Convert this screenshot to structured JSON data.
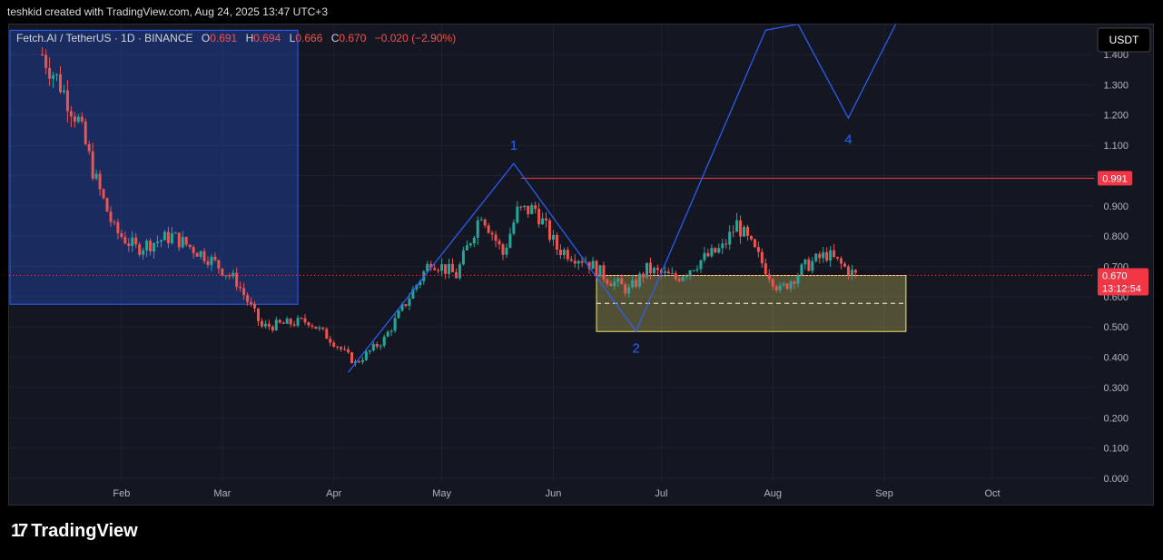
{
  "header": {
    "text": "teshkid created with TradingView.com, Aug 24, 2025 13:47 UTC+3"
  },
  "legend": {
    "symbol": "Fetch.AI / TetherUS · 1D · BINANCE",
    "o_label": "O",
    "o_value": "0.691",
    "h_label": "H",
    "h_value": "0.694",
    "l_label": "L",
    "l_value": "0.666",
    "c_label": "C",
    "c_value": "0.670",
    "change": "−0.020 (−2.90%)"
  },
  "currency_button": "USDT",
  "price_tag": {
    "price": "0.670",
    "countdown": "13:12:54"
  },
  "level_tag": "0.991",
  "wave_labels": [
    "1",
    "2",
    "4"
  ],
  "footer": {
    "brand": "TradingView"
  },
  "colors": {
    "up": "#26a69a",
    "down": "#ef5350",
    "wave": "#2962ff",
    "zone": "#f5e663",
    "level": "#f23645"
  },
  "chart_data": {
    "type": "candlestick",
    "symbol": "FETUSDT",
    "interval": "1D",
    "y_axis": {
      "ticks": [
        "0.000",
        "0.100",
        "0.200",
        "0.300",
        "0.400",
        "0.500",
        "0.600",
        "0.700",
        "0.800",
        "0.900",
        "1.000",
        "1.100",
        "1.200",
        "1.300",
        "1.400"
      ],
      "range": [
        0.0,
        1.42
      ]
    },
    "x_axis": {
      "ticks": [
        "Feb",
        "Mar",
        "Apr",
        "May",
        "Jun",
        "Jul",
        "Aug",
        "Sep",
        "Oct"
      ]
    },
    "ohlc_anchor_closes": [
      [
        "2025-01-10",
        1.4
      ],
      [
        "2025-01-15",
        1.3
      ],
      [
        "2025-01-20",
        1.18
      ],
      [
        "2025-01-25",
        0.98
      ],
      [
        "2025-01-30",
        0.82
      ],
      [
        "2025-02-05",
        0.76
      ],
      [
        "2025-02-15",
        0.8
      ],
      [
        "2025-02-25",
        0.73
      ],
      [
        "2025-03-05",
        0.65
      ],
      [
        "2025-03-12",
        0.5
      ],
      [
        "2025-03-25",
        0.52
      ],
      [
        "2025-04-01",
        0.45
      ],
      [
        "2025-04-07",
        0.38
      ],
      [
        "2025-04-15",
        0.46
      ],
      [
        "2025-04-22",
        0.6
      ],
      [
        "2025-04-28",
        0.72
      ],
      [
        "2025-05-05",
        0.67
      ],
      [
        "2025-05-12",
        0.88
      ],
      [
        "2025-05-18",
        0.74
      ],
      [
        "2025-05-22",
        0.88
      ],
      [
        "2025-05-27",
        0.89
      ],
      [
        "2025-06-02",
        0.76
      ],
      [
        "2025-06-10",
        0.72
      ],
      [
        "2025-06-16",
        0.66
      ],
      [
        "2025-06-22",
        0.62
      ],
      [
        "2025-06-27",
        0.69
      ],
      [
        "2025-07-05",
        0.66
      ],
      [
        "2025-07-12",
        0.72
      ],
      [
        "2025-07-18",
        0.76
      ],
      [
        "2025-07-22",
        0.84
      ],
      [
        "2025-07-28",
        0.73
      ],
      [
        "2025-08-03",
        0.62
      ],
      [
        "2025-08-10",
        0.7
      ],
      [
        "2025-08-16",
        0.74
      ],
      [
        "2025-08-24",
        0.67
      ]
    ],
    "horizontal_line": 0.991,
    "current_price": 0.67,
    "zone": {
      "from": "2025-06-13",
      "to": "2025-09-07",
      "low": 0.485,
      "high": 0.67,
      "mid": 0.578
    },
    "wave_path": [
      [
        "2025-04-05",
        0.35
      ],
      [
        "2025-05-21",
        1.04
      ],
      [
        "2025-06-24",
        0.485
      ],
      [
        "2025-07-30",
        1.48
      ],
      [
        "2025-08-08",
        1.5
      ],
      [
        "2025-08-22",
        1.19
      ],
      [
        "2025-09-05",
        1.52
      ]
    ],
    "wave_label_points": [
      [
        "2025-05-21",
        1.1
      ],
      [
        "2025-06-24",
        0.43
      ],
      [
        "2025-08-22",
        1.12
      ]
    ],
    "shaded_box": {
      "from": "2025-01-01",
      "to": "2025-03-22",
      "low": 0.575,
      "high": 1.48
    }
  }
}
